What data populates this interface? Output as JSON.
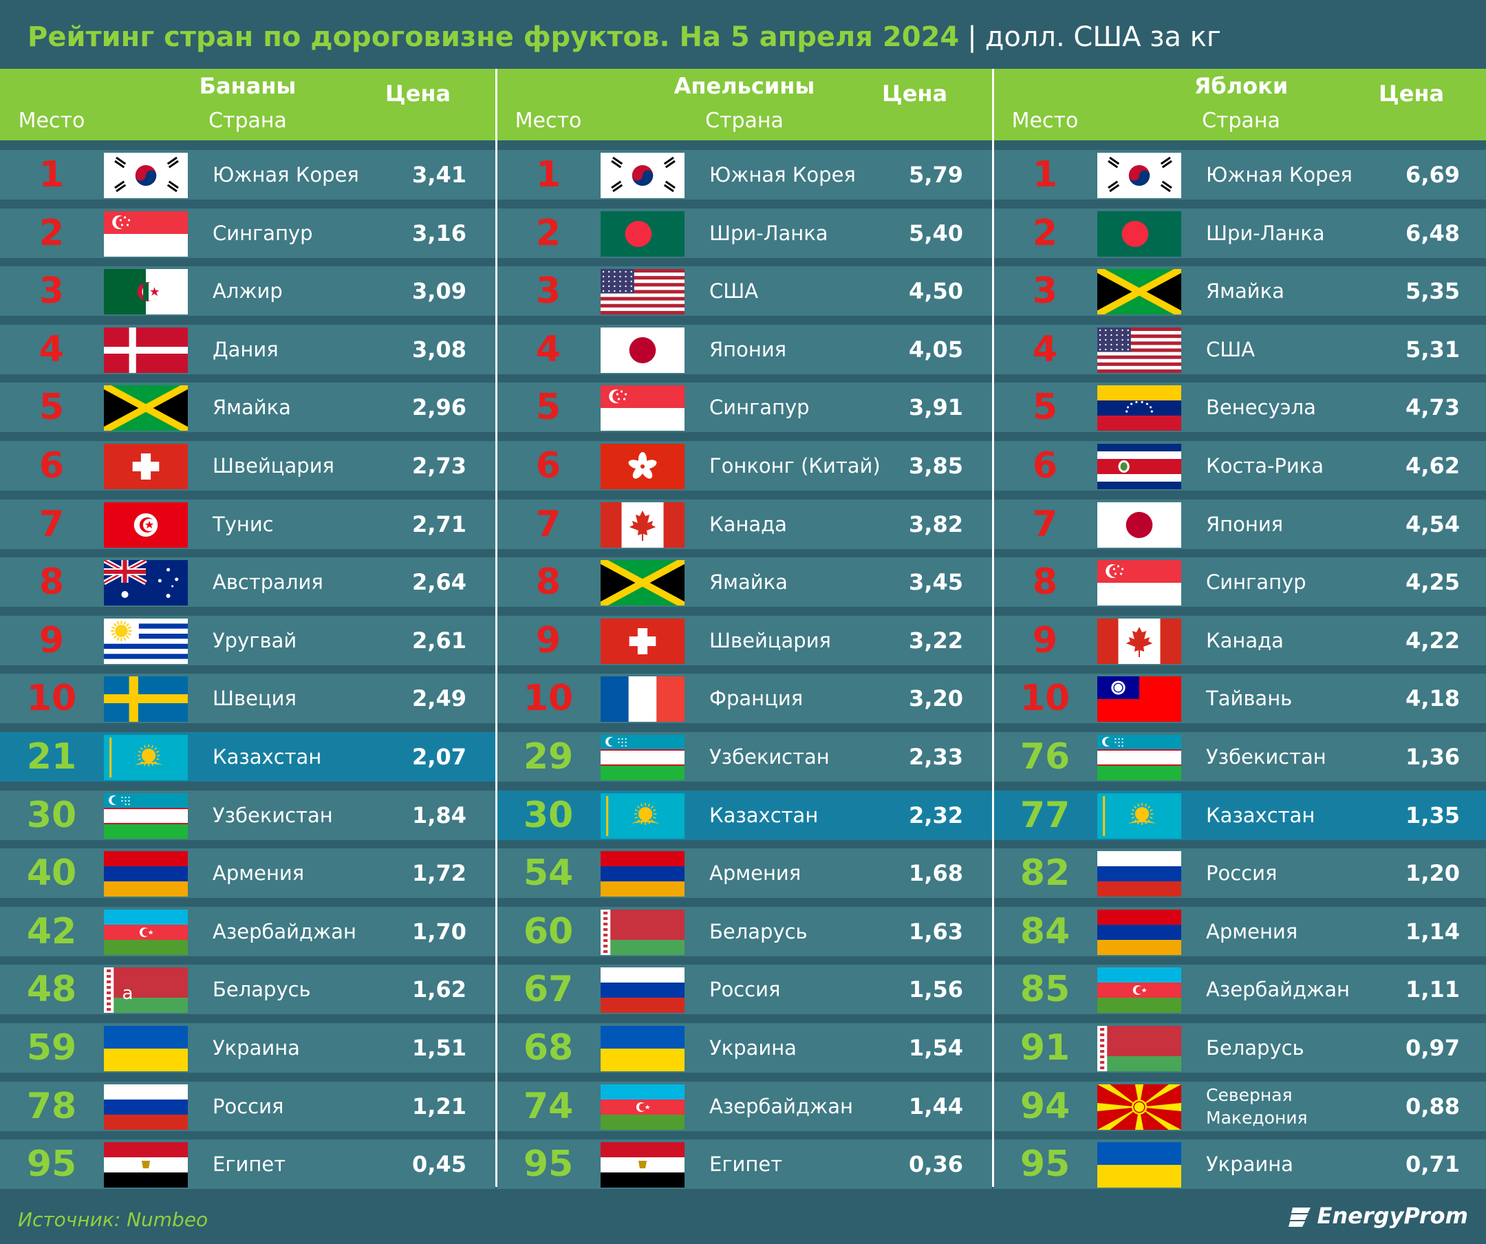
{
  "title": {
    "main": "Рейтинг стран по дороговизне фруктов. На 5 апреля 2024",
    "separator": "|",
    "unit": "долл. США за кг"
  },
  "column_labels": {
    "place": "Место",
    "country": "Страна",
    "price": "Цена"
  },
  "source": "Источник: Numbeo",
  "brand": "EnergyProm",
  "colors": {
    "background": "#2f5f6c",
    "header": "#86c93c",
    "row": "#3f7a85",
    "highlight_row": "#167fa1",
    "top_rank": "#e61e1e",
    "low_rank": "#8ed13d"
  },
  "chart_data": {
    "type": "table",
    "title": "Рейтинг стран по дороговизне фруктов. На 5 апреля 2024",
    "unit": "долл. США за кг",
    "columns": [
      "Место",
      "Страна",
      "Цена"
    ],
    "tables": [
      {
        "fruit": "Бананы",
        "rows": [
          {
            "rank": "1",
            "country": "Южная Корея",
            "price": "3,41",
            "flag": "KR"
          },
          {
            "rank": "2",
            "country": "Сингапур",
            "price": "3,16",
            "flag": "SG"
          },
          {
            "rank": "3",
            "country": "Алжир",
            "price": "3,09",
            "flag": "DZ"
          },
          {
            "rank": "4",
            "country": "Дания",
            "price": "3,08",
            "flag": "DK"
          },
          {
            "rank": "5",
            "country": "Ямайка",
            "price": "2,96",
            "flag": "JM"
          },
          {
            "rank": "6",
            "country": "Швейцария",
            "price": "2,73",
            "flag": "CH"
          },
          {
            "rank": "7",
            "country": "Тунис",
            "price": "2,71",
            "flag": "TN"
          },
          {
            "rank": "8",
            "country": "Австралия",
            "price": "2,64",
            "flag": "AU"
          },
          {
            "rank": "9",
            "country": "Уругвай",
            "price": "2,61",
            "flag": "UY"
          },
          {
            "rank": "10",
            "country": "Швеция",
            "price": "2,49",
            "flag": "SE"
          },
          {
            "rank": "21",
            "country": "Казахстан",
            "price": "2,07",
            "flag": "KZ",
            "highlight": true
          },
          {
            "rank": "30",
            "country": "Узбекистан",
            "price": "1,84",
            "flag": "UZ"
          },
          {
            "rank": "40",
            "country": "Армения",
            "price": "1,72",
            "flag": "AM"
          },
          {
            "rank": "42",
            "country": "Азербайджан",
            "price": "1,70",
            "flag": "AZ"
          },
          {
            "rank": "48",
            "country": "Беларусь",
            "price": "1,62",
            "flag": "BY",
            "flag_label": "a"
          },
          {
            "rank": "59",
            "country": "Украина",
            "price": "1,51",
            "flag": "UA"
          },
          {
            "rank": "78",
            "country": "Россия",
            "price": "1,21",
            "flag": "RU"
          },
          {
            "rank": "95",
            "country": "Египет",
            "price": "0,45",
            "flag": "EG"
          }
        ]
      },
      {
        "fruit": "Апельсины",
        "rows": [
          {
            "rank": "1",
            "country": "Южная Корея",
            "price": "5,79",
            "flag": "KR"
          },
          {
            "rank": "2",
            "country": "Шри-Ланка",
            "price": "5,40",
            "flag": "BD"
          },
          {
            "rank": "3",
            "country": "США",
            "price": "4,50",
            "flag": "US"
          },
          {
            "rank": "4",
            "country": "Япония",
            "price": "4,05",
            "flag": "JP"
          },
          {
            "rank": "5",
            "country": "Сингапур",
            "price": "3,91",
            "flag": "SG"
          },
          {
            "rank": "6",
            "country": "Гонконг (Китай)",
            "price": "3,85",
            "flag": "HK"
          },
          {
            "rank": "7",
            "country": "Канада",
            "price": "3,82",
            "flag": "CA"
          },
          {
            "rank": "8",
            "country": "Ямайка",
            "price": "3,45",
            "flag": "JM"
          },
          {
            "rank": "9",
            "country": "Швейцария",
            "price": "3,22",
            "flag": "CH"
          },
          {
            "rank": "10",
            "country": "Франция",
            "price": "3,20",
            "flag": "FR"
          },
          {
            "rank": "29",
            "country": "Узбекистан",
            "price": "2,33",
            "flag": "UZ"
          },
          {
            "rank": "30",
            "country": "Казахстан",
            "price": "2,32",
            "flag": "KZ",
            "highlight": true
          },
          {
            "rank": "54",
            "country": "Армения",
            "price": "1,68",
            "flag": "AM"
          },
          {
            "rank": "60",
            "country": "Беларусь",
            "price": "1,63",
            "flag": "BY"
          },
          {
            "rank": "67",
            "country": "Россия",
            "price": "1,56",
            "flag": "RU"
          },
          {
            "rank": "68",
            "country": "Украина",
            "price": "1,54",
            "flag": "UA"
          },
          {
            "rank": "74",
            "country": "Азербайджан",
            "price": "1,44",
            "flag": "AZ"
          },
          {
            "rank": "95",
            "country": "Египет",
            "price": "0,36",
            "flag": "EG"
          }
        ]
      },
      {
        "fruit": "Яблоки",
        "rows": [
          {
            "rank": "1",
            "country": "Южная Корея",
            "price": "6,69",
            "flag": "KR"
          },
          {
            "rank": "2",
            "country": "Шри-Ланка",
            "price": "6,48",
            "flag": "BD"
          },
          {
            "rank": "3",
            "country": "Ямайка",
            "price": "5,35",
            "flag": "JM"
          },
          {
            "rank": "4",
            "country": "США",
            "price": "5,31",
            "flag": "US"
          },
          {
            "rank": "5",
            "country": "Венесуэла",
            "price": "4,73",
            "flag": "VE"
          },
          {
            "rank": "6",
            "country": "Коста-Рика",
            "price": "4,62",
            "flag": "CR"
          },
          {
            "rank": "7",
            "country": "Япония",
            "price": "4,54",
            "flag": "JP"
          },
          {
            "rank": "8",
            "country": "Сингапур",
            "price": "4,25",
            "flag": "SG"
          },
          {
            "rank": "9",
            "country": "Канада",
            "price": "4,22",
            "flag": "CA"
          },
          {
            "rank": "10",
            "country": "Тайвань",
            "price": "4,18",
            "flag": "TW"
          },
          {
            "rank": "76",
            "country": "Узбекистан",
            "price": "1,36",
            "flag": "UZ"
          },
          {
            "rank": "77",
            "country": "Казахстан",
            "price": "1,35",
            "flag": "KZ",
            "highlight": true
          },
          {
            "rank": "82",
            "country": "Россия",
            "price": "1,20",
            "flag": "RU"
          },
          {
            "rank": "84",
            "country": "Армения",
            "price": "1,14",
            "flag": "AM"
          },
          {
            "rank": "85",
            "country": "Азербайджан",
            "price": "1,11",
            "flag": "AZ"
          },
          {
            "rank": "91",
            "country": "Беларусь",
            "price": "0,97",
            "flag": "BY"
          },
          {
            "rank": "94",
            "country": "Северная Македония",
            "price": "0,88",
            "flag": "MK",
            "name_lines": [
              "Северная",
              "Македония"
            ]
          },
          {
            "rank": "95",
            "country": "Украина",
            "price": "0,71",
            "flag": "UA"
          }
        ]
      }
    ]
  }
}
